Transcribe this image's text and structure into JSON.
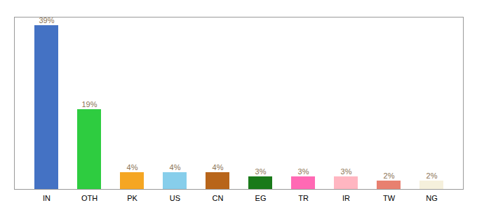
{
  "chart_data": {
    "type": "bar",
    "categories": [
      "IN",
      "OTH",
      "PK",
      "US",
      "CN",
      "EG",
      "TR",
      "IR",
      "TW",
      "NG"
    ],
    "values": [
      39,
      19,
      4,
      4,
      4,
      3,
      3,
      3,
      2,
      2
    ],
    "value_labels": [
      "39%",
      "19%",
      "4%",
      "4%",
      "4%",
      "3%",
      "3%",
      "3%",
      "2%",
      "2%"
    ],
    "colors": [
      "#4472C4",
      "#2ECC40",
      "#F5A623",
      "#87CEEB",
      "#B8651A",
      "#1A7A1A",
      "#FF69B4",
      "#FFB6C1",
      "#E88070",
      "#F5F0DC"
    ],
    "ylim": [
      0,
      41
    ],
    "data_labels": true,
    "tick_labels": "x",
    "grid": false
  }
}
